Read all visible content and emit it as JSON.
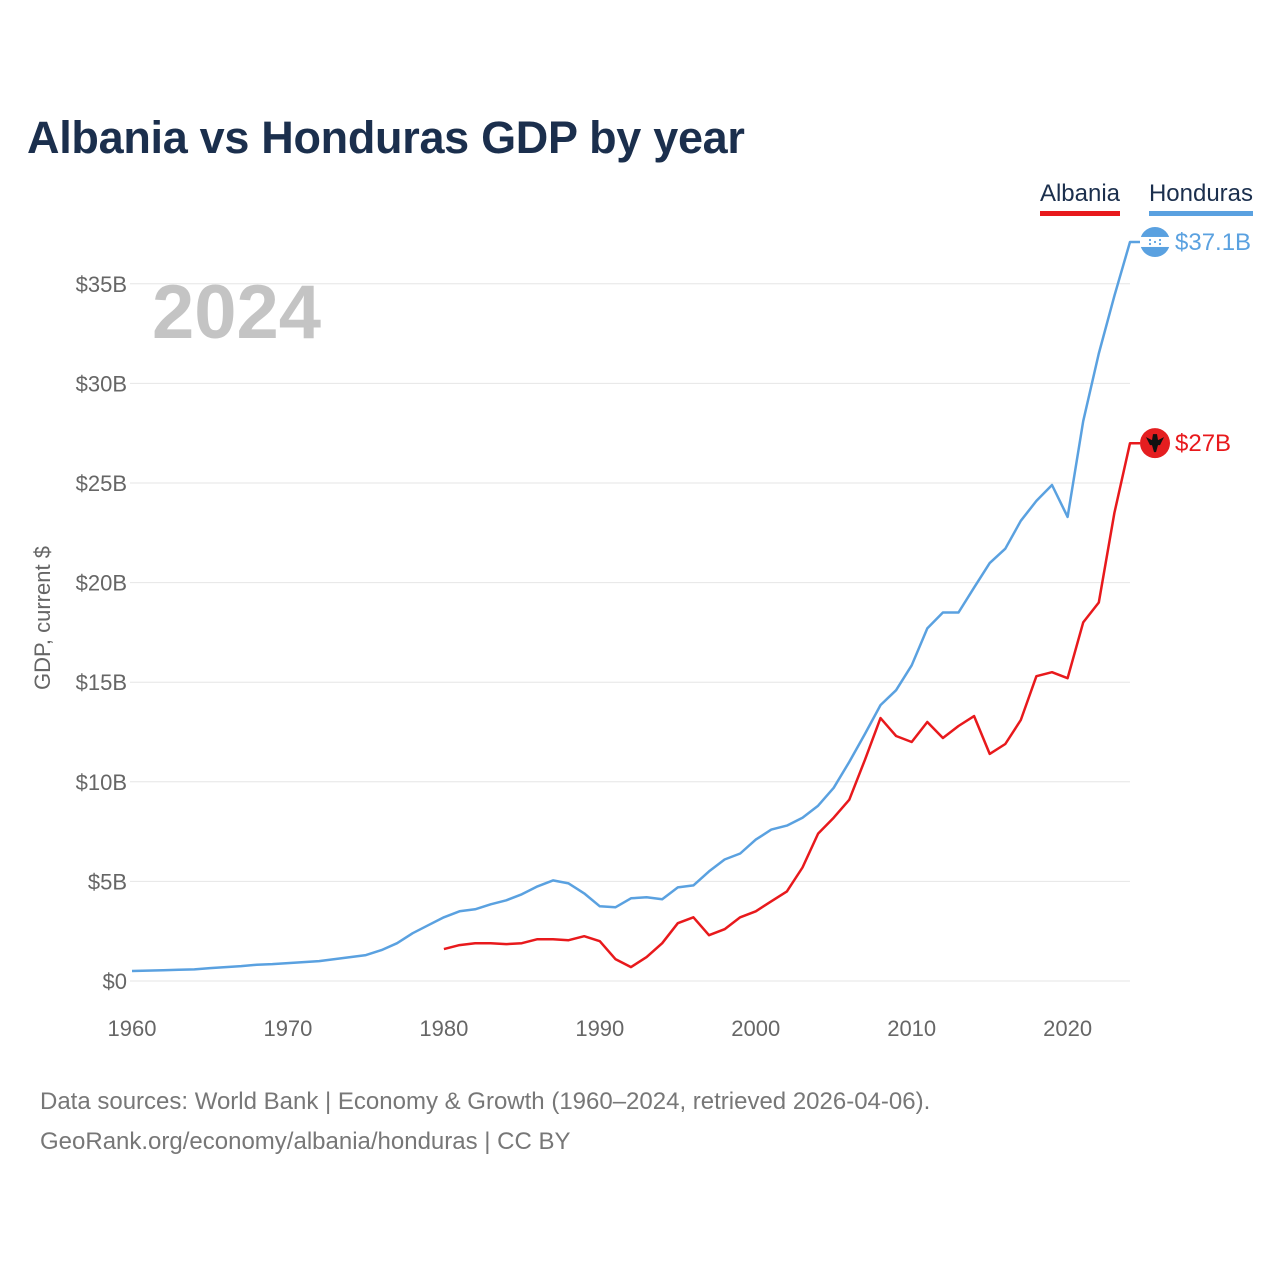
{
  "title": "Albania vs Honduras GDP by year",
  "legend": [
    "Albania",
    "Honduras"
  ],
  "colors": {
    "Albania": "#e8191c",
    "Honduras": "#5aa1e0",
    "title": "#1b2f4d",
    "grid": "#e6e6e6",
    "muted": "#666666"
  },
  "icons": {
    "Albania": "albania-flag-icon",
    "Honduras": "honduras-flag-icon"
  },
  "source": {
    "line1": "Data sources: World Bank | Economy & Growth (1960–2024, retrieved 2026-04-06).",
    "line2": "GeoRank.org/economy/albania/honduras | CC BY"
  },
  "chart_data": {
    "type": "line",
    "title": "Albania vs Honduras GDP by year",
    "year_label": "2024",
    "ylabel": "GDP, current $",
    "xlabel": "",
    "xlim": [
      1960,
      2024
    ],
    "ylim": [
      0,
      37.5
    ],
    "x_ticks": [
      1960,
      1970,
      1980,
      1990,
      2000,
      2010,
      2020
    ],
    "x_tick_labels": [
      "1960",
      "1970",
      "1980",
      "1990",
      "2000",
      "2010",
      "2020"
    ],
    "y_ticks": [
      0,
      5,
      10,
      15,
      20,
      25,
      30,
      35
    ],
    "y_tick_labels": [
      "$0",
      "$5B",
      "$10B",
      "$15B",
      "$20B",
      "$25B",
      "$30B",
      "$35B"
    ],
    "grid": true,
    "legend_position": "top-right",
    "series": [
      {
        "name": "Albania",
        "end_label": "$27B",
        "x": [
          1980,
          1981,
          1982,
          1983,
          1984,
          1985,
          1986,
          1987,
          1988,
          1989,
          1990,
          1991,
          1992,
          1993,
          1994,
          1995,
          1996,
          1997,
          1998,
          1999,
          2000,
          2001,
          2002,
          2003,
          2004,
          2005,
          2006,
          2007,
          2008,
          2009,
          2010,
          2011,
          2012,
          2013,
          2014,
          2015,
          2016,
          2017,
          2018,
          2019,
          2020,
          2021,
          2022,
          2023,
          2024
        ],
        "values": [
          1.6,
          1.8,
          1.9,
          1.9,
          1.85,
          1.9,
          2.1,
          2.1,
          2.05,
          2.25,
          2.0,
          1.1,
          0.7,
          1.2,
          1.9,
          2.9,
          3.2,
          2.3,
          2.6,
          3.2,
          3.5,
          4.0,
          4.5,
          5.7,
          7.4,
          8.2,
          9.1,
          11.1,
          13.2,
          12.3,
          12.0,
          13.0,
          12.2,
          12.8,
          13.3,
          11.4,
          11.9,
          13.1,
          15.3,
          15.5,
          15.2,
          18.0,
          19.0,
          23.5,
          27.0
        ]
      },
      {
        "name": "Honduras",
        "end_label": "$37.1B",
        "x": [
          1960,
          1961,
          1962,
          1963,
          1964,
          1965,
          1966,
          1967,
          1968,
          1969,
          1970,
          1971,
          1972,
          1973,
          1974,
          1975,
          1976,
          1977,
          1978,
          1979,
          1980,
          1981,
          1982,
          1983,
          1984,
          1985,
          1986,
          1987,
          1988,
          1989,
          1990,
          1991,
          1992,
          1993,
          1994,
          1995,
          1996,
          1997,
          1998,
          1999,
          2000,
          2001,
          2002,
          2003,
          2004,
          2005,
          2006,
          2007,
          2008,
          2009,
          2010,
          2011,
          2012,
          2013,
          2014,
          2015,
          2016,
          2017,
          2018,
          2019,
          2020,
          2021,
          2022,
          2023,
          2024
        ],
        "values": [
          0.5,
          0.52,
          0.54,
          0.56,
          0.58,
          0.65,
          0.7,
          0.75,
          0.82,
          0.85,
          0.9,
          0.95,
          1.0,
          1.1,
          1.2,
          1.3,
          1.55,
          1.9,
          2.4,
          2.8,
          3.2,
          3.5,
          3.6,
          3.85,
          4.05,
          4.35,
          4.75,
          5.05,
          4.9,
          4.4,
          3.75,
          3.7,
          4.15,
          4.2,
          4.1,
          4.7,
          4.8,
          5.5,
          6.1,
          6.4,
          7.1,
          7.6,
          7.8,
          8.2,
          8.8,
          9.7,
          11.0,
          12.4,
          13.85,
          14.6,
          15.85,
          17.7,
          18.5,
          18.5,
          19.75,
          20.98,
          21.7,
          23.1,
          24.1,
          24.9,
          23.3,
          28.1,
          31.5,
          34.4,
          37.1
        ]
      }
    ]
  }
}
